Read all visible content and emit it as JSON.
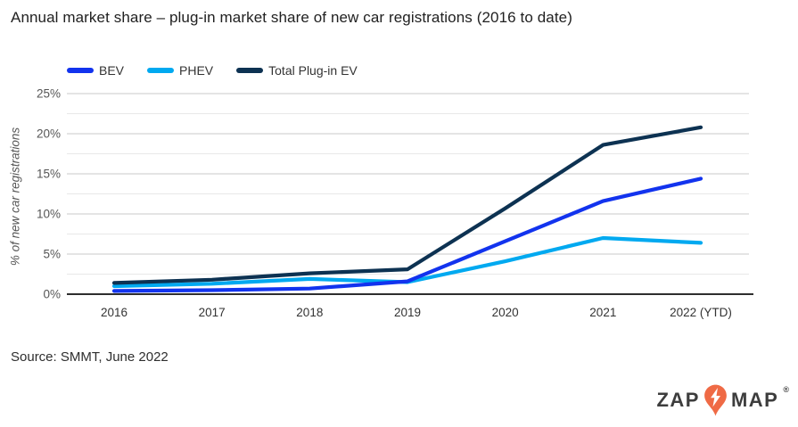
{
  "page": {
    "title": "Annual market share – plug-in market share of new car registrations (2016 to date)",
    "source": "Source: SMMT, June 2022"
  },
  "chart_data": {
    "type": "line",
    "title": "Annual market share – plug-in market share of new car registrations (2016 to date)",
    "categories": [
      "2016",
      "2017",
      "2018",
      "2019",
      "2020",
      "2021",
      "2022 (YTD)"
    ],
    "series": [
      {
        "name": "BEV",
        "color": "#1233ee",
        "values": [
          0.4,
          0.5,
          0.7,
          1.6,
          6.6,
          11.6,
          14.4
        ]
      },
      {
        "name": "PHEV",
        "color": "#00a9f0",
        "values": [
          1.0,
          1.3,
          1.9,
          1.5,
          4.1,
          7.0,
          6.4
        ]
      },
      {
        "name": "Total Plug-in EV",
        "color": "#0d3252",
        "values": [
          1.4,
          1.8,
          2.6,
          3.1,
          10.7,
          18.6,
          20.8
        ]
      }
    ],
    "xlabel": "",
    "ylabel": "% of new car registrations",
    "ylim": [
      0,
      25
    ],
    "ytick_step": 5,
    "yminor_step": 2.5,
    "ytick_suffix": "%",
    "grid": true,
    "legend_position": "top-left"
  },
  "style": {
    "grid_major_color": "#c9c9c9",
    "grid_minor_color": "#e8e8e8",
    "axis_line_color": "#2e2e2e",
    "x_label_color": "#333333",
    "y_label_color": "#555555"
  },
  "logo": {
    "zap": "ZAP",
    "map": "MAP",
    "reg": "®",
    "pin_color": "#ef6a45",
    "bolt_color": "#ffffff",
    "text_color": "#3d3d3d"
  }
}
